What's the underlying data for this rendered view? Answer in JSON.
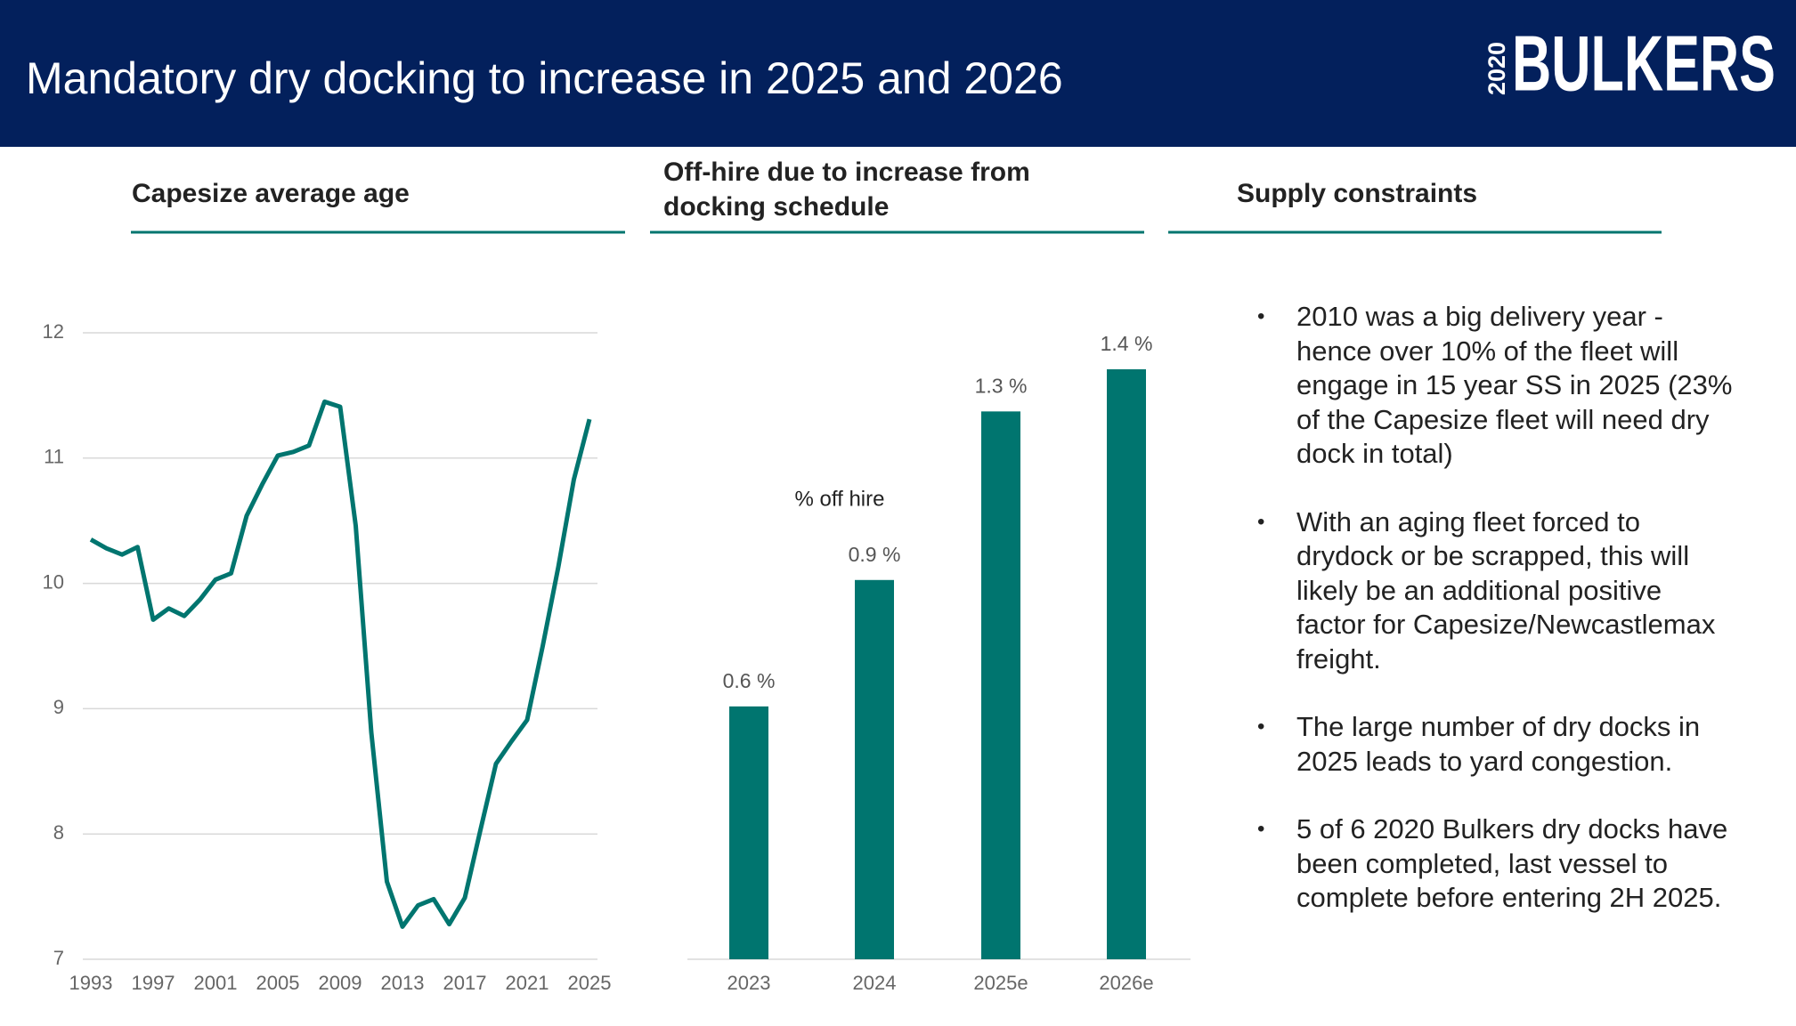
{
  "header": {
    "title": "Mandatory dry docking to increase in 2025 and 2026",
    "logo_year": "2020",
    "logo_name": "BULKERS"
  },
  "chart_data": [
    {
      "type": "line",
      "title": "Capesize average age",
      "x": [
        1993,
        1994,
        1995,
        1996,
        1997,
        1998,
        1999,
        2000,
        2001,
        2002,
        2003,
        2004,
        2005,
        2006,
        2007,
        2008,
        2009,
        2010,
        2011,
        2012,
        2013,
        2014,
        2015,
        2016,
        2017,
        2018,
        2019,
        2020,
        2021,
        2022,
        2023,
        2024,
        2025
      ],
      "series": [
        {
          "name": "Capesize average age",
          "color": "#00756f",
          "values": [
            10.35,
            10.28,
            10.23,
            10.29,
            9.71,
            9.8,
            9.74,
            9.87,
            10.03,
            10.08,
            10.54,
            10.79,
            11.02,
            11.05,
            11.1,
            11.45,
            11.41,
            10.46,
            8.81,
            7.62,
            7.26,
            7.43,
            7.48,
            7.28,
            7.49,
            8.03,
            8.56,
            8.74,
            8.91,
            9.5,
            10.13,
            10.83,
            11.31
          ]
        }
      ],
      "xlim": [
        1993,
        2025
      ],
      "xticks": [
        1993,
        1997,
        2001,
        2005,
        2009,
        2013,
        2017,
        2021,
        2025
      ],
      "ylim": [
        7,
        12
      ],
      "yticks": [
        7,
        8,
        9,
        10,
        11,
        12
      ],
      "grid": true
    },
    {
      "type": "bar",
      "title": "Off-hire due to increase from docking schedule",
      "annotation": "% off hire",
      "categories": [
        "2023",
        "2024",
        "2025e",
        "2026e"
      ],
      "values": [
        0.6,
        0.9,
        1.3,
        1.4
      ],
      "value_labels": [
        "0.6 %",
        "0.9 %",
        "1.3 %",
        "1.4 %"
      ],
      "color": "#00756f"
    }
  ],
  "panel": {
    "title": "Supply constraints",
    "bullets": [
      "2010 was a big delivery year - hence over 10% of the fleet will engage in 15 year SS in 2025 (23% of the Capesize fleet will need dry dock in total)",
      "With an aging fleet forced to drydock or be scrapped, this will likely be an additional positive factor for Capesize/Newcastlemax freight.",
      "The large number of dry docks in 2025 leads to yard congestion.",
      "5 of 6 2020 Bulkers dry docks have been completed, last vessel to complete before entering 2H 2025."
    ]
  }
}
